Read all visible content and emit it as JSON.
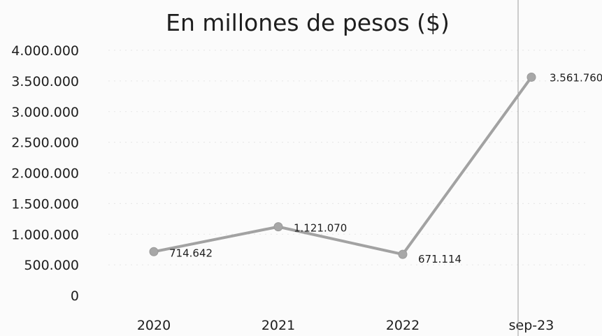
{
  "chart_data": {
    "type": "line",
    "title": "En millones de pesos ($)",
    "categories": [
      "2020",
      "2021",
      "2022",
      "sep-23"
    ],
    "series": [
      {
        "values": [
          714642,
          1121070,
          671114,
          3561760
        ]
      }
    ],
    "data_labels": [
      "714.642",
      "1.121.070",
      "671.114",
      "3.561.760"
    ],
    "y_ticks": [
      {
        "value": 0,
        "label": "0"
      },
      {
        "value": 500000,
        "label": "500.000"
      },
      {
        "value": 1000000,
        "label": "1.000.000"
      },
      {
        "value": 1500000,
        "label": "1.500.000"
      },
      {
        "value": 2000000,
        "label": "2.000.000"
      },
      {
        "value": 2500000,
        "label": "2.500.000"
      },
      {
        "value": 3000000,
        "label": "3.000.000"
      },
      {
        "value": 3500000,
        "label": "3.500.000"
      },
      {
        "value": 4000000,
        "label": "4.000.000"
      }
    ],
    "ylim": [
      0,
      4000000
    ],
    "grid": true,
    "legend": "none",
    "colors": {
      "line": "#a2a2a2",
      "marker": "#a7a7a7",
      "text": "#1e1e1e",
      "grid": "#e6e6e6"
    }
  }
}
